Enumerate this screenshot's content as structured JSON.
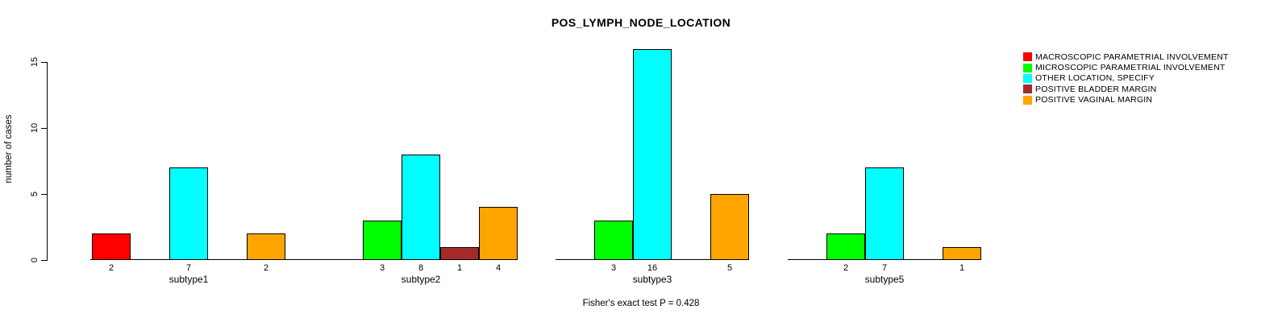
{
  "chart_data": {
    "type": "bar",
    "title": "POS_LYMPH_NODE_LOCATION",
    "ylabel": "number of cases",
    "xlabel": "",
    "ylim": [
      0,
      16.5
    ],
    "yticks": [
      0,
      5,
      10,
      15
    ],
    "grid": false,
    "legend_position": "right",
    "annotation": "Fisher's exact test P = 0.428",
    "categories": [
      "subtype1",
      "subtype2",
      "subtype3",
      "subtype5"
    ],
    "series": [
      {
        "name": "MACROSCOPIC PARAMETRIAL INVOLVEMENT",
        "color": "#FF0000",
        "values": [
          2,
          null,
          null,
          null
        ]
      },
      {
        "name": "MICROSCOPIC PARAMETRIAL INVOLVEMENT",
        "color": "#00FF00",
        "values": [
          null,
          3,
          3,
          2
        ]
      },
      {
        "name": "OTHER LOCATION, SPECIFY",
        "color": "#00FFFF",
        "values": [
          7,
          8,
          16,
          7
        ]
      },
      {
        "name": "POSITIVE BLADDER MARGIN",
        "color": "#A52A2A",
        "values": [
          null,
          1,
          null,
          null
        ]
      },
      {
        "name": "POSITIVE VAGINAL MARGIN",
        "color": "#FFA500",
        "values": [
          2,
          4,
          5,
          1
        ]
      }
    ],
    "bar_value_labels_shown": true
  }
}
